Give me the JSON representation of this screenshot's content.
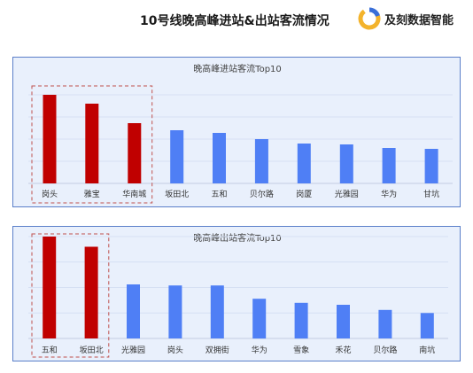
{
  "header": {
    "title": "10号线晚高峰进站&出站客流情况",
    "brand_name": "及刻数据智能",
    "brand_colors": {
      "primary": "#f3b32c",
      "secondary": "#3a6fd8"
    }
  },
  "colors": {
    "highlight": "#c00000",
    "normal": "#4f7ff5",
    "panel_bg": "#e9f0fc",
    "panel_border": "#5b7fc9",
    "highlight_box": "#c0504d"
  },
  "chart_data": [
    {
      "type": "bar",
      "title": "晚高峰进站客流Top10",
      "categories": [
        "岗头",
        "雅宝",
        "华南城",
        "坂田北",
        "五和",
        "贝尔路",
        "岗厦",
        "光雅园",
        "华为",
        "甘坑"
      ],
      "values": [
        100,
        90,
        68,
        60,
        57,
        50,
        45,
        44,
        40,
        39
      ],
      "highlighted": [
        "岗头",
        "雅宝",
        "华南城"
      ],
      "ylim": [
        0,
        100
      ],
      "grid": true,
      "legend": "none"
    },
    {
      "type": "bar",
      "title": "晚高峰出站客流Top10",
      "categories": [
        "五和",
        "坂田北",
        "光雅园",
        "岗头",
        "双拥街",
        "华为",
        "雪象",
        "禾花",
        "贝尔路",
        "南坑"
      ],
      "values": [
        100,
        90,
        53,
        52,
        52,
        39,
        35,
        33,
        28,
        25
      ],
      "highlighted": [
        "五和",
        "坂田北"
      ],
      "ylim": [
        0,
        100
      ],
      "grid": true,
      "legend": "none"
    }
  ]
}
